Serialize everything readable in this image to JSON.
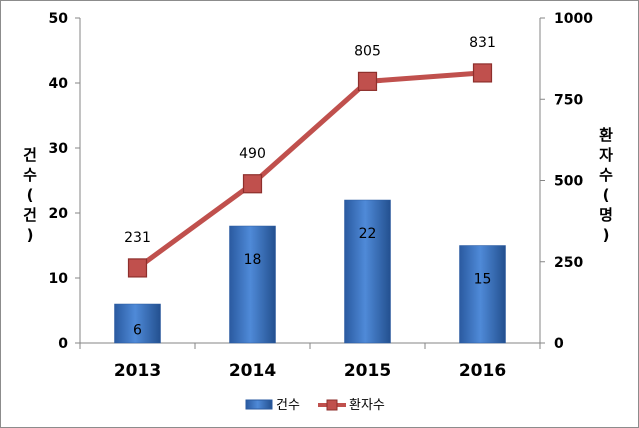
{
  "chart_data": {
    "type": "bar+line",
    "categories": [
      "2013",
      "2014",
      "2015",
      "2016"
    ],
    "series": [
      {
        "name": "건수",
        "type": "bar",
        "axis": "left",
        "values": [
          6,
          18,
          22,
          15
        ],
        "color": "#3a75c4"
      },
      {
        "name": "환자수",
        "type": "line",
        "axis": "right",
        "values": [
          231,
          490,
          805,
          831
        ],
        "color": "#c0504d"
      }
    ],
    "y_left": {
      "label": "건수(건)",
      "ylim": [
        0,
        50
      ],
      "ticks": [
        "0",
        "10",
        "20",
        "30",
        "40",
        "50"
      ]
    },
    "y_right": {
      "label": "환자수(명)",
      "ylim": [
        0,
        1000
      ],
      "ticks": [
        "0",
        "250",
        "500",
        "750",
        "1000"
      ]
    },
    "grid": false,
    "legend": "bottom"
  }
}
